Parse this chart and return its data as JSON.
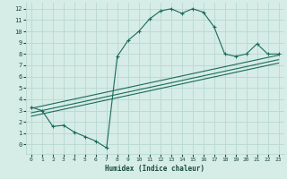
{
  "xlabel": "Humidex (Indice chaleur)",
  "bg_color": "#d6ece6",
  "grid_color": "#b8d8d0",
  "line_color": "#1a6b5a",
  "xlim": [
    -0.5,
    23.5
  ],
  "ylim": [
    -0.8,
    12.5
  ],
  "xticks": [
    0,
    1,
    2,
    3,
    4,
    5,
    6,
    7,
    8,
    9,
    10,
    11,
    12,
    13,
    14,
    15,
    16,
    17,
    18,
    19,
    20,
    21,
    22,
    23
  ],
  "yticks": [
    0,
    1,
    2,
    3,
    4,
    5,
    6,
    7,
    8,
    9,
    10,
    11,
    12
  ],
  "main_x": [
    0,
    1,
    2,
    3,
    4,
    5,
    6,
    7,
    8,
    9,
    10,
    11,
    12,
    13,
    14,
    15,
    16,
    17,
    18,
    19,
    20,
    21,
    22,
    23
  ],
  "main_y": [
    3.3,
    3.0,
    1.6,
    1.7,
    1.1,
    0.7,
    0.3,
    -0.3,
    7.8,
    9.2,
    10.0,
    11.1,
    11.8,
    12.0,
    11.6,
    12.0,
    11.7,
    10.4,
    8.0,
    7.8,
    8.0,
    8.9,
    8.0,
    8.0
  ],
  "line1_x": [
    0,
    23
  ],
  "line1_y": [
    2.5,
    7.2
  ],
  "line2_x": [
    0,
    23
  ],
  "line2_y": [
    2.8,
    7.5
  ],
  "line3_x": [
    0,
    23
  ],
  "line3_y": [
    3.2,
    7.9
  ]
}
